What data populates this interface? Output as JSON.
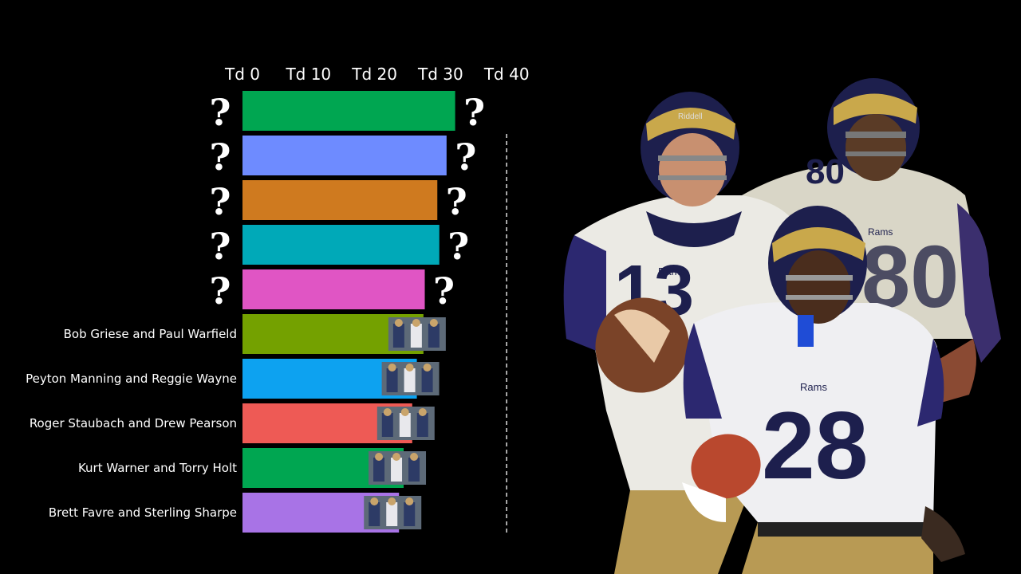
{
  "chart_data": {
    "type": "bar",
    "orientation": "horizontal",
    "xlim": [
      0,
      40
    ],
    "ticks": [
      {
        "value": 0,
        "label": "Td 0"
      },
      {
        "value": 10,
        "label": "Td 10"
      },
      {
        "value": 20,
        "label": "Td 20"
      },
      {
        "value": 30,
        "label": "Td 30"
      },
      {
        "value": 40,
        "label": "Td 40"
      }
    ],
    "reference_line": 40,
    "hidden_marker": "?",
    "bars": [
      {
        "label": "",
        "hidden": true,
        "value": 32.2,
        "color": "#00a651"
      },
      {
        "label": "",
        "hidden": true,
        "value": 30.9,
        "color": "#6e8bff"
      },
      {
        "label": "",
        "hidden": true,
        "value": 29.5,
        "color": "#cf7a1f"
      },
      {
        "label": "",
        "hidden": true,
        "value": 29.8,
        "color": "#00a9b8"
      },
      {
        "label": "",
        "hidden": true,
        "value": 27.6,
        "color": "#e055c4"
      },
      {
        "label": "Bob Griese and Paul Warfield",
        "hidden": false,
        "value": 27.4,
        "color": "#74a100"
      },
      {
        "label": "Peyton Manning and Reggie Wayne",
        "hidden": false,
        "value": 26.4,
        "color": "#0da2f0"
      },
      {
        "label": "Roger Staubach and Drew Pearson",
        "hidden": false,
        "value": 25.7,
        "color": "#ee5a55"
      },
      {
        "label": "Kurt Warner and Torry Holt",
        "hidden": false,
        "value": 24.4,
        "color": "#00a651"
      },
      {
        "label": "Brett Favre and Sterling Sharpe",
        "hidden": false,
        "value": 23.7,
        "color": "#a873e6"
      }
    ]
  },
  "players": {
    "team_mark": "Rams",
    "jersey_numbers": [
      "13",
      "80",
      "28"
    ],
    "helmet_brand": "Riddell"
  }
}
